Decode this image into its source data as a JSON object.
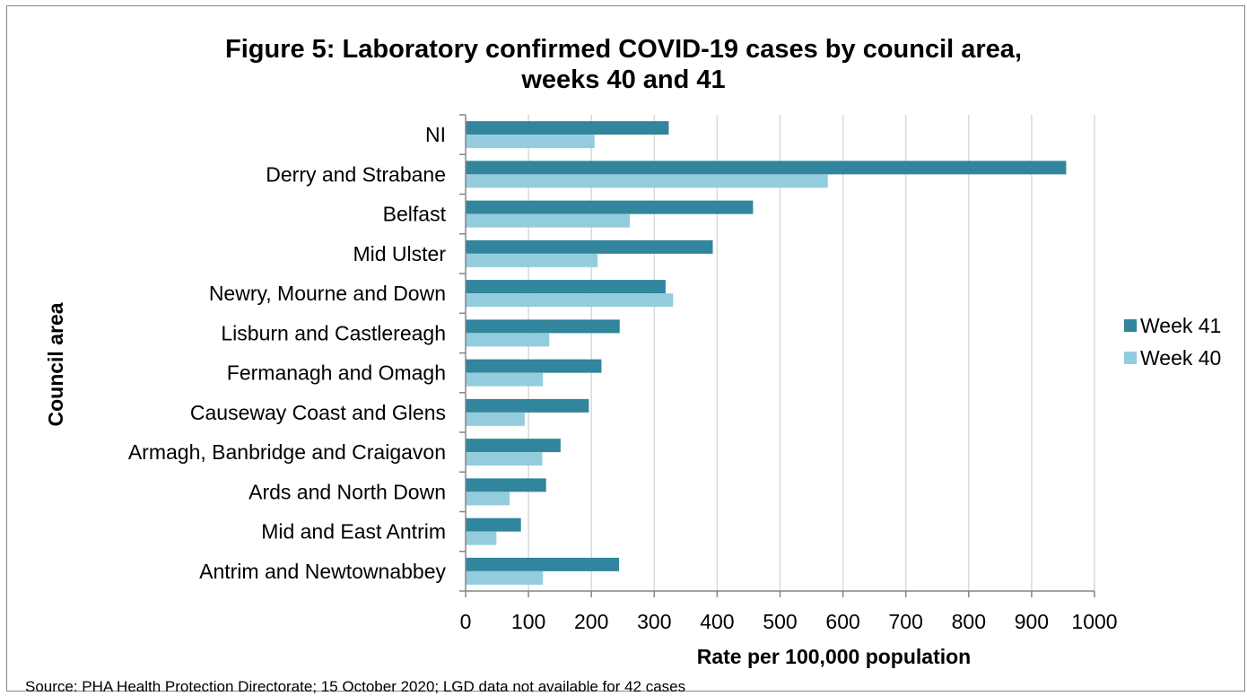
{
  "title_line1": "Figure 5: Laboratory confirmed COVID-19 cases by council area,",
  "title_line2": "weeks 40 and 41",
  "source": "Source: PHA Health Protection Directorate; 15 October 2020; LGD data not available for 42 cases",
  "chart_data": {
    "type": "bar",
    "orientation": "horizontal",
    "categories": [
      "NI",
      "Derry and Strabane",
      "Belfast",
      "Mid Ulster",
      "Newry, Mourne and Down",
      "Lisburn and Castlereagh",
      "Fermanagh and Omagh",
      "Causeway Coast and Glens",
      "Armagh, Banbridge and Craigavon",
      "Ards and North Down",
      "Mid and East Antrim",
      "Antrim and Newtownabbey"
    ],
    "series": [
      {
        "name": "Week 41",
        "color": "#31859C",
        "values": [
          323,
          955,
          457,
          393,
          318,
          245,
          216,
          196,
          151,
          128,
          88,
          244
        ]
      },
      {
        "name": "Week 40",
        "color": "#93CDDD",
        "values": [
          205,
          576,
          261,
          210,
          330,
          133,
          123,
          94,
          122,
          70,
          49,
          123
        ]
      }
    ],
    "xlabel": "Rate per 100,000 population",
    "ylabel": "Council area",
    "xlim": [
      0,
      1000
    ],
    "xticks": [
      "0",
      "100",
      "200",
      "300",
      "400",
      "500",
      "600",
      "700",
      "800",
      "900",
      "1000"
    ],
    "grid": "vertical",
    "legend": "right"
  }
}
